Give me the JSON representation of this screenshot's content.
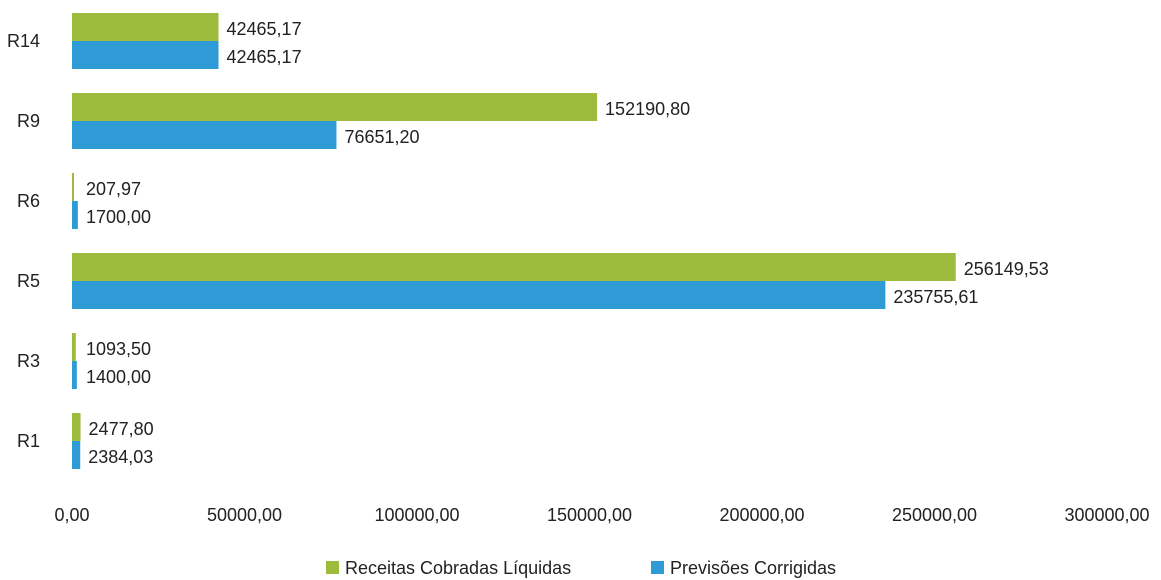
{
  "chart_data": {
    "type": "bar",
    "orientation": "horizontal",
    "categories": [
      "R14",
      "R9",
      "R6",
      "R5",
      "R3",
      "R1"
    ],
    "series": [
      {
        "name": "Receitas Cobradas Líquidas",
        "color": "#9dbb3c",
        "values": [
          42465.17,
          152190.8,
          207.97,
          256149.53,
          1093.5,
          2477.8
        ],
        "labels": [
          "42465,17",
          "152190,80",
          "207,97",
          "256149,53",
          "1093,50",
          "2477,80"
        ]
      },
      {
        "name": "Previsões Corrigidas",
        "color": "#2e9bd6",
        "values": [
          42465.17,
          76651.2,
          1700.0,
          235755.61,
          1400.0,
          2384.03
        ],
        "labels": [
          "42465,17",
          "76651,20",
          "1700,00",
          "235755,61",
          "1400,00",
          "2384,03"
        ]
      }
    ],
    "xlim": [
      0,
      300000
    ],
    "x_ticks": [
      "0,00",
      "50000,00",
      "100000,00",
      "150000,00",
      "200000,00",
      "250000,00",
      "300000,00"
    ],
    "grid": false,
    "legend_position": "bottom"
  }
}
